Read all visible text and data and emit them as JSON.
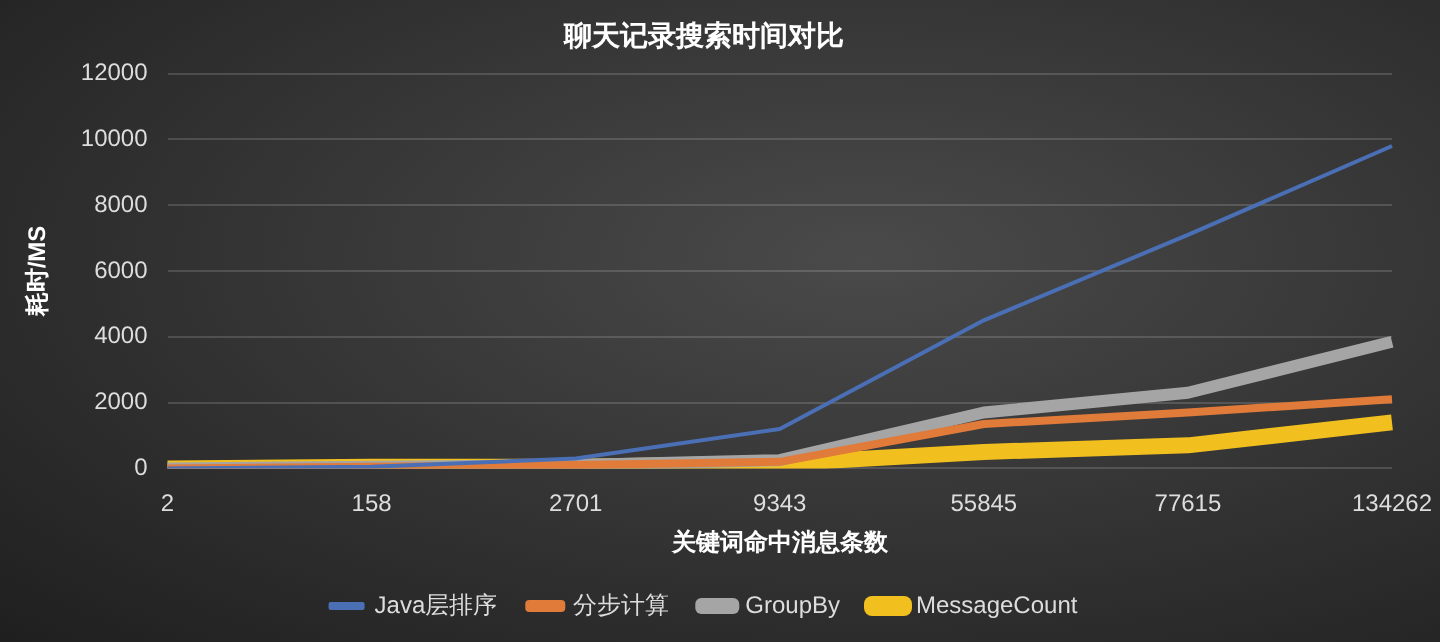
{
  "chart_data": {
    "type": "line",
    "title": "聊天记录搜索时间对比",
    "xlabel": "关键词命中消息条数",
    "ylabel": "耗时/MS",
    "categories": [
      "2",
      "158",
      "2701",
      "9343",
      "55845",
      "77615",
      "134262"
    ],
    "series": [
      {
        "name": "Java层排序",
        "color": "#4a6fb5",
        "values": [
          0,
          50,
          300,
          1200,
          4500,
          7100,
          9800
        ]
      },
      {
        "name": "分步计算",
        "color": "#e07b39",
        "values": [
          0,
          50,
          100,
          200,
          1350,
          1700,
          2100
        ]
      },
      {
        "name": "GroupBy",
        "color": "#a5a5a5",
        "values": [
          0,
          50,
          100,
          250,
          1700,
          2300,
          3850
        ]
      },
      {
        "name": "MessageCount",
        "color": "#f2c01e",
        "values": [
          0,
          50,
          50,
          150,
          500,
          700,
          1400
        ]
      }
    ],
    "ylim": [
      0,
      12000
    ],
    "yticks": [
      0,
      2000,
      4000,
      6000,
      8000,
      10000,
      12000
    ],
    "grid": "y",
    "legend": "bottom",
    "marker": "none",
    "line_style": "solid"
  }
}
